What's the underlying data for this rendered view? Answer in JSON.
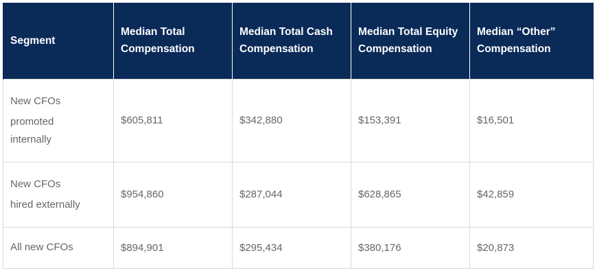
{
  "table": {
    "headers": [
      "Segment",
      "Median Total Compensation",
      "Median Total Cash Compensation",
      "Median Total Equity Compensation",
      "Median “Other” Compensation"
    ],
    "rows": [
      {
        "segment_lines": [
          "New CFOs",
          "promoted",
          "internally"
        ],
        "values": [
          "$605,811",
          "$342,880",
          "$153,391",
          "$16,501"
        ]
      },
      {
        "segment_lines": [
          "New CFOs",
          "hired externally"
        ],
        "values": [
          "$954,860",
          "$287,044",
          "$628,865",
          "$42,859"
        ]
      },
      {
        "segment_lines": [
          "All new CFOs"
        ],
        "values": [
          "$894,901",
          "$295,434",
          "$380,176",
          "$20,873"
        ]
      }
    ]
  },
  "colors": {
    "header_bg": "#0a2a58",
    "header_text": "#ffffff",
    "cell_text": "#666666",
    "border": "#d9d9d9"
  }
}
